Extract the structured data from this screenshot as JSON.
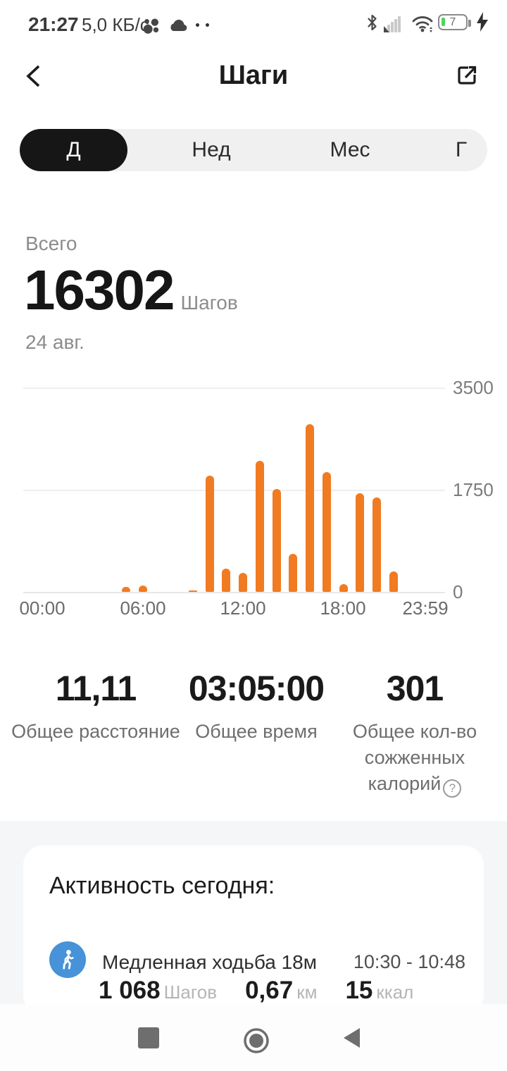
{
  "status_bar": {
    "time": "21:27",
    "network_speed": "5,0 КБ/с",
    "battery_level": "7",
    "icons": [
      "app-dots-icon",
      "cloud-icon",
      "more-notifications-icon",
      "bluetooth-icon",
      "cell-signal-icon",
      "wifi-icon",
      "battery-icon",
      "charging-bolt-icon"
    ]
  },
  "header": {
    "title": "Шаги"
  },
  "tabs": {
    "items": [
      {
        "label": "Д",
        "selected": true
      },
      {
        "label": "Нед",
        "selected": false
      },
      {
        "label": "Мес",
        "selected": false
      },
      {
        "label": "Г",
        "selected": false
      }
    ]
  },
  "summary": {
    "label": "Всего",
    "value": "16302",
    "unit": "Шагов",
    "date": "24 авг."
  },
  "chart_data": {
    "type": "bar",
    "categories": [
      "00:00",
      "01:00",
      "02:00",
      "03:00",
      "04:00",
      "05:00",
      "06:00",
      "07:00",
      "08:00",
      "09:00",
      "10:00",
      "11:00",
      "12:00",
      "13:00",
      "14:00",
      "15:00",
      "16:00",
      "17:00",
      "18:00",
      "19:00",
      "20:00",
      "21:00",
      "22:00",
      "23:00"
    ],
    "values": [
      0,
      0,
      0,
      0,
      0,
      85,
      110,
      0,
      0,
      27,
      1990,
      400,
      320,
      2240,
      1760,
      650,
      2870,
      2055,
      135,
      1690,
      1615,
      355,
      0,
      0
    ],
    "total": 16302,
    "title": "",
    "xlabel": "",
    "ylabel": "",
    "ylim": [
      0,
      3500
    ],
    "yticks": [
      0,
      1750,
      3500
    ],
    "xticks": [
      "00:00",
      "06:00",
      "12:00",
      "18:00",
      "23:59"
    ],
    "grid": "horizontal",
    "bar_color": "#f07b22"
  },
  "stats": {
    "items": [
      {
        "value": "11,11",
        "label": "Общее расстояние"
      },
      {
        "value": "03:05:00",
        "label": "Общее время"
      },
      {
        "value": "301",
        "label": "Общее кол-во сожженных калорий",
        "help_glyph": "?"
      }
    ]
  },
  "activity_card": {
    "title": "Активность сегодня:",
    "activities": [
      {
        "icon": "walking-icon",
        "name": "Медленная ходьба 18м",
        "time_range": "10:30 - 10:48",
        "metrics": [
          {
            "value": "1 068",
            "unit": "Шагов"
          },
          {
            "value": "0,67",
            "unit": "км"
          },
          {
            "value": "15",
            "unit": "ккал"
          }
        ]
      }
    ]
  },
  "navigation": {
    "buttons": [
      "recents",
      "home",
      "back"
    ]
  },
  "colors": {
    "accent": "#f07b22",
    "activity_icon_blue": "#4792d8",
    "battery_green": "#4fd35f"
  }
}
